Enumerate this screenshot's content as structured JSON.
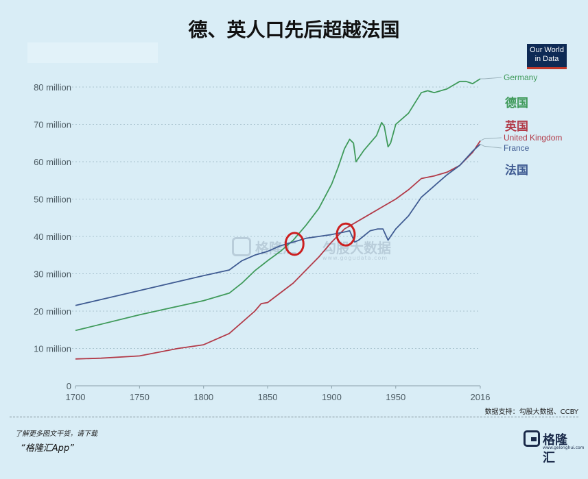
{
  "title": "德、英人口先后超越法国",
  "owid_badge": {
    "line1": "Our World",
    "line2": "in Data"
  },
  "watermark": {
    "name": "格隆汇",
    "name2": "勾股大数据",
    "url": "www.gogudata.com"
  },
  "source_text": "数据支持：勾股大数据、CCBY",
  "promo": {
    "line1": "了解更多图文干货，请下载",
    "line2": "“格隆汇App”"
  },
  "logo": {
    "text": "格隆汇",
    "sub": "www.gelonghui.com"
  },
  "colors": {
    "germany": "#3f9a5a",
    "uk": "#b23a48",
    "france": "#3f5b92",
    "highlight": "#cc1f1f",
    "background": "#d9edf6"
  },
  "chart_data": {
    "type": "line",
    "xlim": [
      1700,
      2016
    ],
    "ylim": [
      0,
      80
    ],
    "y_ticks": [
      0,
      10,
      20,
      30,
      40,
      50,
      60,
      70,
      80
    ],
    "y_tick_labels": [
      "0",
      "10 million",
      "20 million",
      "30 million",
      "40 million",
      "50 million",
      "60 million",
      "70 million",
      "80 million"
    ],
    "x_ticks": [
      1700,
      1750,
      1800,
      1850,
      1900,
      1950,
      2016
    ],
    "x_tick_labels": [
      "1700",
      "1750",
      "1800",
      "1850",
      "1900",
      "1950",
      "2016"
    ],
    "grid": true,
    "series": [
      {
        "name": "Germany",
        "label_cn": "德国",
        "color": "#3f9a5a",
        "x": [
          1700,
          1750,
          1800,
          1820,
          1830,
          1840,
          1850,
          1860,
          1870,
          1880,
          1890,
          1900,
          1905,
          1910,
          1914,
          1917,
          1919,
          1925,
          1935,
          1939,
          1941,
          1944,
          1946,
          1950,
          1960,
          1970,
          1975,
          1980,
          1990,
          2000,
          2005,
          2010,
          2016
        ],
        "values": [
          14.8,
          19.0,
          22.8,
          24.8,
          27.5,
          30.8,
          33.5,
          36.0,
          39.0,
          43.0,
          47.5,
          54.0,
          58.5,
          63.5,
          66.0,
          65.0,
          60.0,
          63.0,
          67.0,
          70.5,
          69.5,
          64.0,
          65.0,
          70.0,
          73.0,
          78.5,
          79.0,
          78.5,
          79.5,
          81.5,
          81.5,
          80.9,
          82.2
        ]
      },
      {
        "name": "United Kingdom",
        "label_cn": "英国",
        "color": "#b23a48",
        "x": [
          1700,
          1720,
          1750,
          1780,
          1800,
          1820,
          1840,
          1845,
          1850,
          1870,
          1880,
          1890,
          1900,
          1910,
          1920,
          1930,
          1940,
          1950,
          1960,
          1970,
          1980,
          1990,
          2000,
          2010,
          2016
        ],
        "values": [
          7.2,
          7.4,
          8.0,
          10.0,
          11.0,
          14.0,
          20.0,
          22.0,
          22.3,
          27.5,
          31.0,
          34.5,
          38.5,
          42.0,
          44.0,
          46.0,
          48.0,
          50.0,
          52.5,
          55.5,
          56.2,
          57.2,
          59.0,
          62.5,
          65.6
        ]
      },
      {
        "name": "France",
        "label_cn": "法国",
        "color": "#3f5b92",
        "x": [
          1700,
          1750,
          1800,
          1820,
          1830,
          1840,
          1850,
          1860,
          1870,
          1880,
          1890,
          1900,
          1910,
          1914,
          1918,
          1921,
          1930,
          1936,
          1940,
          1944,
          1946,
          1950,
          1960,
          1970,
          1980,
          1990,
          2000,
          2010,
          2016
        ],
        "values": [
          21.5,
          25.5,
          29.5,
          31.0,
          33.5,
          35.0,
          36.0,
          37.5,
          38.5,
          39.5,
          40.0,
          40.5,
          41.2,
          41.5,
          38.5,
          39.0,
          41.5,
          42.0,
          42.0,
          39.0,
          40.0,
          42.0,
          45.5,
          50.5,
          53.5,
          56.5,
          59.0,
          62.8,
          64.7
        ]
      }
    ],
    "annotations": [
      {
        "type": "circle",
        "x": 1871,
        "y": 38
      },
      {
        "type": "circle",
        "x": 1911,
        "y": 40.5
      }
    ]
  }
}
